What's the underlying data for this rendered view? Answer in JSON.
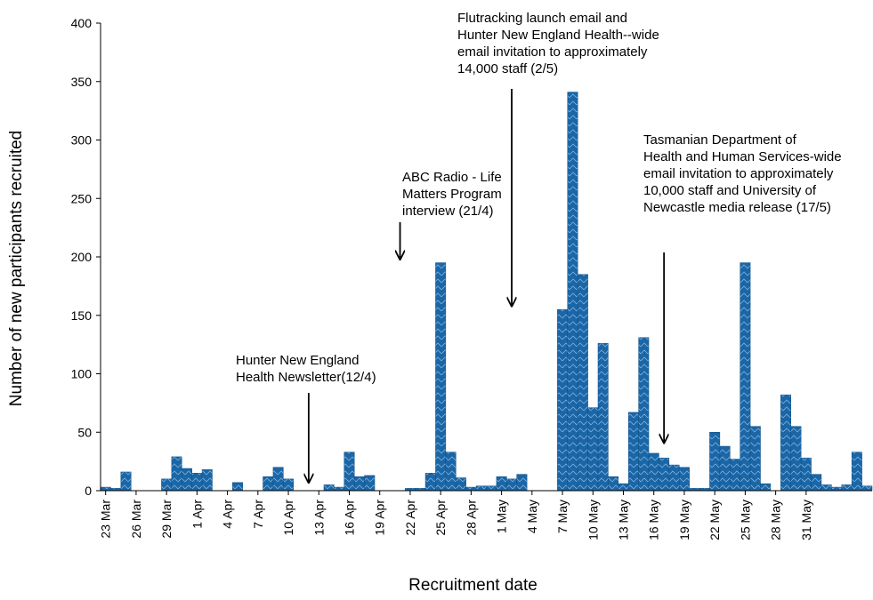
{
  "chart_data": {
    "type": "bar",
    "title": "",
    "xlabel": "Recruitment date",
    "ylabel": "Number of new participants recruited",
    "ylim": [
      0,
      400
    ],
    "yticks": [
      0,
      50,
      100,
      150,
      200,
      250,
      300,
      350,
      400
    ],
    "grid": false,
    "start_date": "23 Mar",
    "x_tick_labels": [
      "23 Mar",
      "26 Mar",
      "29 Mar",
      "1 Apr",
      "4 Apr",
      "7 Apr",
      "10 Apr",
      "13 Apr",
      "16 Apr",
      "19 Apr",
      "22 Apr",
      "25 Apr",
      "28 Apr",
      "1 May",
      "4 May",
      "7 May",
      "10 May",
      "13 May",
      "16 May",
      "19 May",
      "22 May",
      "25 May",
      "28 May",
      "31 May"
    ],
    "values": [
      3,
      2,
      16,
      0,
      0,
      0,
      10,
      29,
      19,
      15,
      18,
      0,
      0,
      7,
      0,
      0,
      12,
      20,
      10,
      0,
      0,
      0,
      5,
      3,
      33,
      12,
      13,
      0,
      0,
      0,
      2,
      2,
      15,
      195,
      33,
      11,
      3,
      4,
      4,
      12,
      10,
      14,
      0,
      0,
      0,
      155,
      341,
      185,
      71,
      126,
      12,
      6,
      67,
      131,
      32,
      28,
      22,
      20,
      2,
      2,
      50,
      38,
      27,
      195,
      55,
      6,
      0,
      82,
      55,
      28,
      14,
      5,
      3,
      5,
      33,
      4
    ],
    "color": "#1a66a6",
    "annotations": [
      {
        "text": "Hunter New  England\nHealth Newsletter(12/4)",
        "date": "12 Apr",
        "value": 4
      },
      {
        "text": "ABC Radio - Life\nMatters Program\ninterview (21/4)",
        "date": "21 Apr",
        "value": 195
      },
      {
        "text": "Flutracking launch email and\nHunter New England Health--wide\nemail invitation to approximately\n14,000 staff (2/5)",
        "date": "2 May",
        "value": 155
      },
      {
        "text": "Tasmanian Department of\nHealth and Human Services-wide\nemail invitation to approximately\n10,000 staff and University of\nNewcastle media release (17/5)",
        "date": "17 May",
        "value": 38
      }
    ]
  }
}
